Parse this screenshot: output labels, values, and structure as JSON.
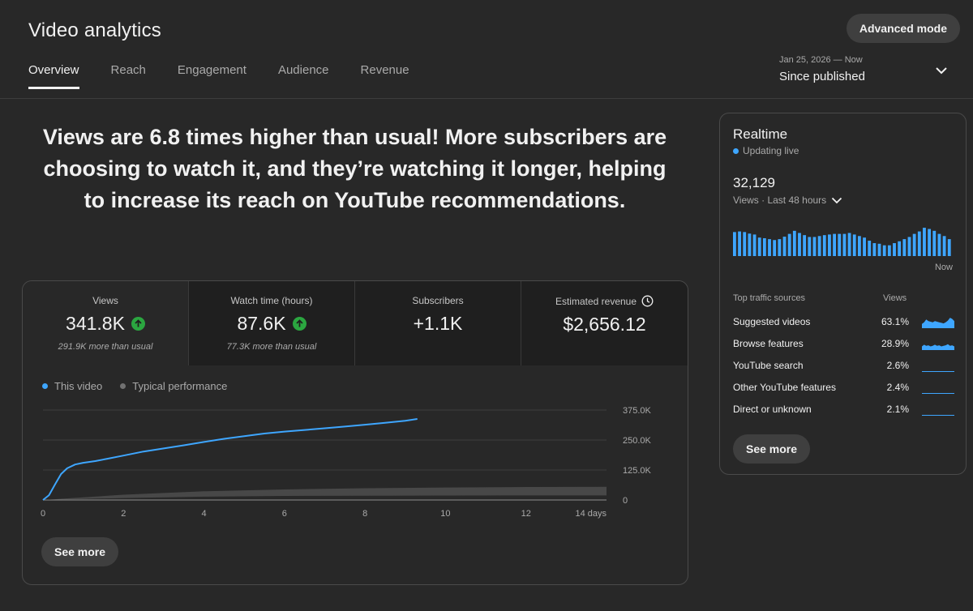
{
  "header": {
    "title": "Video analytics",
    "advanced_mode_label": "Advanced mode",
    "tabs": [
      {
        "label": "Overview",
        "active": true
      },
      {
        "label": "Reach",
        "active": false
      },
      {
        "label": "Engagement",
        "active": false
      },
      {
        "label": "Audience",
        "active": false
      },
      {
        "label": "Revenue",
        "active": false
      }
    ],
    "date_range": {
      "range": "Jan 25, 2026 — Now",
      "label": "Since published"
    }
  },
  "headline": "Views are 6.8 times higher than usual! More subscribers are choosing to watch it, and they’re watching it longer, helping to increase its reach on YouTube recommendations.",
  "metrics": [
    {
      "label": "Views",
      "value": "341.8K",
      "note": "291.9K more than usual",
      "trend": "up"
    },
    {
      "label": "Watch time (hours)",
      "value": "87.6K",
      "note": "77.3K more than usual",
      "trend": "up"
    },
    {
      "label": "Subscribers",
      "value": "+1.1K",
      "note": "",
      "trend": "none"
    },
    {
      "label": "Estimated revenue",
      "value": "$2,656.12",
      "note": "",
      "trend": "none"
    }
  ],
  "legend": {
    "this_video": "This video",
    "typical": "Typical performance"
  },
  "chart_data": {
    "type": "line",
    "x_unit_label": "14 days",
    "xlim": [
      0,
      14
    ],
    "ylim": [
      0,
      375000
    ],
    "x_ticks": [
      0,
      2,
      4,
      6,
      8,
      10,
      12,
      14
    ],
    "x_tick_labels": [
      "0",
      "2",
      "4",
      "6",
      "8",
      "10",
      "12",
      "14 days"
    ],
    "y_ticks": [
      0,
      125000,
      250000,
      375000
    ],
    "y_tick_labels": [
      "0",
      "125.0K",
      "250.0K",
      "375.0K"
    ],
    "series": [
      {
        "name": "This video",
        "color": "#3ea6ff",
        "x": [
          0,
          0.15,
          0.3,
          0.45,
          0.6,
          0.8,
          1.0,
          1.3,
          1.6,
          2.0,
          2.5,
          3.0,
          3.5,
          4.0,
          4.5,
          5.0,
          5.5,
          6.0,
          6.5,
          7.0,
          7.5,
          8.0,
          8.5,
          9.0,
          9.3
        ],
        "y": [
          0,
          20000,
          65000,
          108000,
          132000,
          148000,
          155000,
          162000,
          172000,
          185000,
          202000,
          215000,
          228000,
          242000,
          255000,
          266000,
          277000,
          285000,
          292000,
          299000,
          306000,
          314000,
          322000,
          330000,
          338000
        ]
      },
      {
        "name": "Typical performance",
        "color": "#606060",
        "x": [
          0,
          2,
          4,
          6,
          8,
          10,
          12,
          14
        ],
        "y_low": [
          0,
          8000,
          14000,
          17000,
          18000,
          18500,
          19000,
          19000
        ],
        "y_high": [
          0,
          22000,
          36000,
          44000,
          49000,
          52000,
          54000,
          55000
        ]
      }
    ]
  },
  "see_more_label": "See more",
  "realtime": {
    "title": "Realtime",
    "status": "Updating live",
    "count": "32,129",
    "period": "Views · Last 48 hours",
    "now_label": "Now",
    "bars": [
      0.78,
      0.8,
      0.78,
      0.73,
      0.7,
      0.6,
      0.58,
      0.55,
      0.52,
      0.55,
      0.63,
      0.72,
      0.82,
      0.75,
      0.68,
      0.62,
      0.62,
      0.65,
      0.68,
      0.7,
      0.72,
      0.72,
      0.72,
      0.75,
      0.7,
      0.65,
      0.6,
      0.5,
      0.42,
      0.4,
      0.35,
      0.35,
      0.42,
      0.48,
      0.55,
      0.62,
      0.72,
      0.8,
      0.92,
      0.88,
      0.82,
      0.72,
      0.65,
      0.55
    ],
    "traffic_header": {
      "source": "Top traffic sources",
      "views": "Views"
    },
    "traffic_sources": [
      {
        "name": "Suggested videos",
        "pct": "63.1%",
        "spark": [
          0.3,
          0.45,
          0.7,
          0.55,
          0.5,
          0.45,
          0.55,
          0.5,
          0.45,
          0.4,
          0.35,
          0.45,
          0.6,
          0.85,
          0.75,
          0.55
        ]
      },
      {
        "name": "Browse features",
        "pct": "28.9%",
        "spark": [
          0.25,
          0.4,
          0.3,
          0.35,
          0.25,
          0.3,
          0.4,
          0.3,
          0.35,
          0.25,
          0.3,
          0.35,
          0.45,
          0.3,
          0.35,
          0.25
        ]
      },
      {
        "name": "YouTube search",
        "pct": "2.6%",
        "spark": []
      },
      {
        "name": "Other YouTube features",
        "pct": "2.4%",
        "spark": []
      },
      {
        "name": "Direct or unknown",
        "pct": "2.1%",
        "spark": []
      }
    ]
  },
  "colors": {
    "accent": "#3ea6ff",
    "positive": "#2ba640",
    "background": "#282828"
  }
}
